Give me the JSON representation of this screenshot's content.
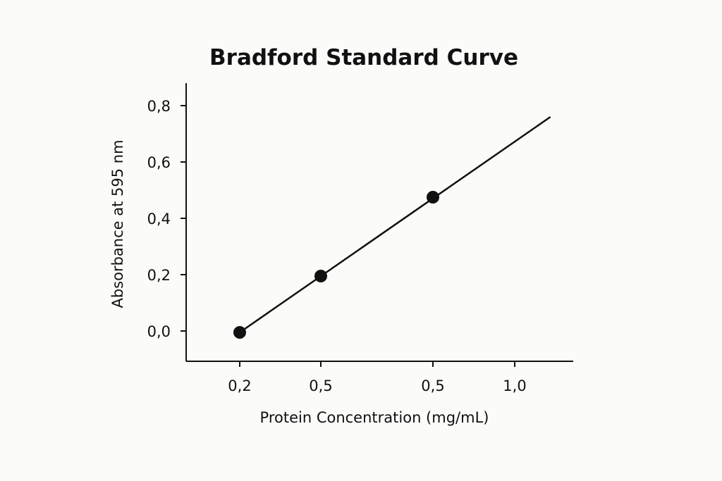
{
  "chart_data": {
    "type": "scatter",
    "title": "Bradford Standard Curve",
    "xlabel": "Protein Concentration (mg/mL)",
    "ylabel": "Absorbance at 595 nm",
    "x_tick_labels": [
      "0,2",
      "0,5",
      "0,5",
      "1,0"
    ],
    "y_ticks": [
      0.0,
      0.2,
      0.4,
      0.6,
      0.8
    ],
    "y_tick_labels": [
      "0,0",
      "0,2",
      "0,4",
      "0,6",
      "0,8"
    ],
    "ylim": [
      -0.11,
      0.88
    ],
    "grid": false,
    "legend": "none",
    "series": [
      {
        "points": [
          {
            "x_category": 0,
            "y": -0.005
          },
          {
            "x_category": 1,
            "y": 0.195
          },
          {
            "x_category": 2,
            "y": 0.475
          }
        ],
        "fit_line": {
          "from": {
            "x_category": 0,
            "y": -0.005
          },
          "to": {
            "x_category": 3.44,
            "y": 0.76
          }
        },
        "color": "#111111"
      }
    ]
  }
}
